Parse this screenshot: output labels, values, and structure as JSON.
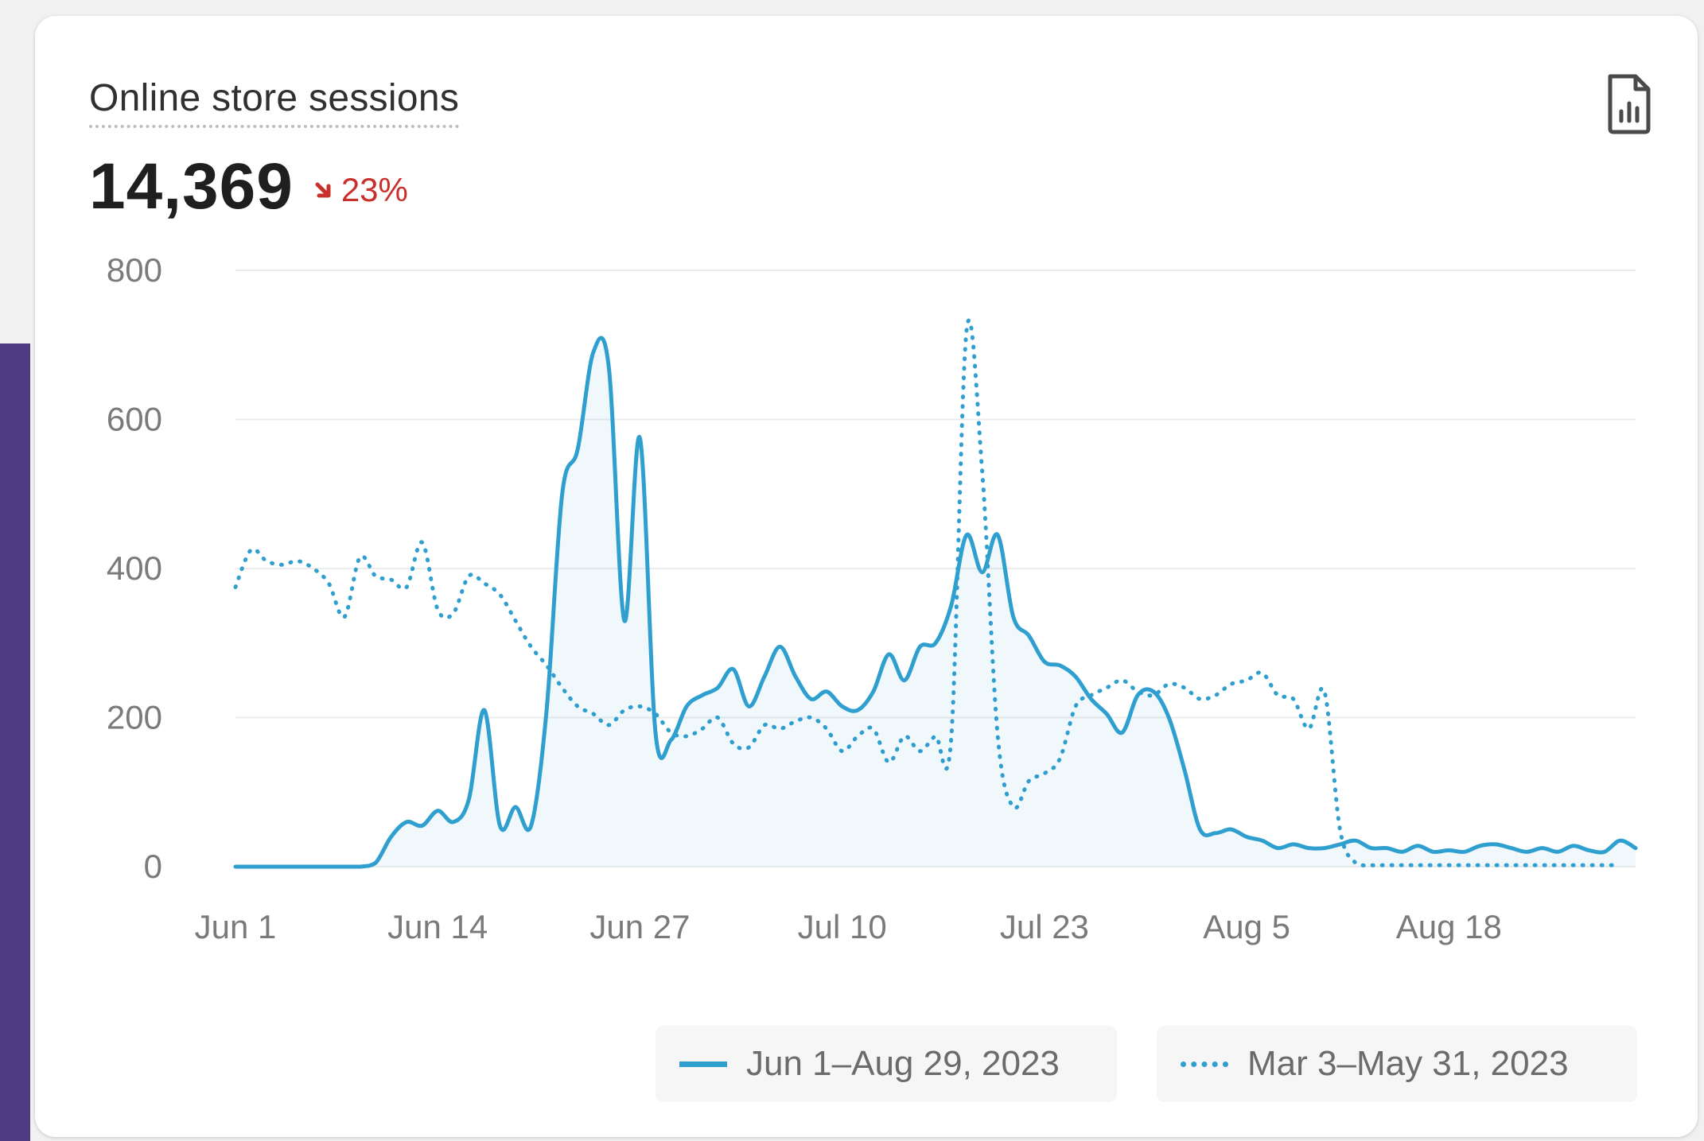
{
  "card": {
    "title": "Online store sessions",
    "value": "14,369",
    "change": "23%",
    "change_direction": "down",
    "change_color": "#c9302c",
    "export_icon": "report-chart-icon"
  },
  "colors": {
    "series": "#2f9fd0",
    "grid": "#ececec",
    "axis_text": "#7a7a7a",
    "side_accent": "#4f3a84"
  },
  "chart_data": {
    "type": "line",
    "ylim": [
      0,
      800
    ],
    "yticks": [
      0,
      200,
      400,
      600,
      800
    ],
    "xticks": [
      "Jun 1",
      "Jun 14",
      "Jun 27",
      "Jul 10",
      "Jul 23",
      "Aug 5",
      "Aug 18"
    ],
    "grid": true,
    "legend_position": "bottom-right",
    "series": [
      {
        "name": "Jun 1–Aug 29, 2023",
        "style": "solid",
        "fill": true,
        "points": [
          [
            0,
            0
          ],
          [
            1,
            0
          ],
          [
            2,
            0
          ],
          [
            3,
            0
          ],
          [
            4,
            0
          ],
          [
            5,
            0
          ],
          [
            6,
            0
          ],
          [
            7,
            0
          ],
          [
            8,
            0
          ],
          [
            9,
            5
          ],
          [
            10,
            40
          ],
          [
            11,
            60
          ],
          [
            12,
            55
          ],
          [
            13,
            75
          ],
          [
            14,
            60
          ],
          [
            15,
            90
          ],
          [
            16,
            210
          ],
          [
            17,
            55
          ],
          [
            18,
            80
          ],
          [
            19,
            55
          ],
          [
            20,
            210
          ],
          [
            21,
            500
          ],
          [
            22,
            560
          ],
          [
            23,
            690
          ],
          [
            24,
            670
          ],
          [
            25,
            330
          ],
          [
            26,
            575
          ],
          [
            27,
            180
          ],
          [
            28,
            170
          ],
          [
            29,
            215
          ],
          [
            30,
            230
          ],
          [
            31,
            240
          ],
          [
            32,
            265
          ],
          [
            33,
            215
          ],
          [
            34,
            255
          ],
          [
            35,
            295
          ],
          [
            36,
            255
          ],
          [
            37,
            225
          ],
          [
            38,
            235
          ],
          [
            39,
            215
          ],
          [
            40,
            210
          ],
          [
            41,
            235
          ],
          [
            42,
            285
          ],
          [
            43,
            250
          ],
          [
            44,
            295
          ],
          [
            45,
            300
          ],
          [
            46,
            350
          ],
          [
            47,
            445
          ],
          [
            48,
            395
          ],
          [
            49,
            445
          ],
          [
            50,
            335
          ],
          [
            51,
            310
          ],
          [
            52,
            275
          ],
          [
            53,
            270
          ],
          [
            54,
            255
          ],
          [
            55,
            225
          ],
          [
            56,
            205
          ],
          [
            57,
            180
          ],
          [
            58,
            230
          ],
          [
            59,
            235
          ],
          [
            60,
            200
          ],
          [
            61,
            130
          ],
          [
            62,
            50
          ],
          [
            63,
            45
          ],
          [
            64,
            50
          ],
          [
            65,
            40
          ],
          [
            66,
            35
          ],
          [
            67,
            25
          ],
          [
            68,
            30
          ],
          [
            69,
            25
          ],
          [
            70,
            25
          ],
          [
            71,
            30
          ],
          [
            72,
            35
          ],
          [
            73,
            25
          ],
          [
            74,
            25
          ],
          [
            75,
            20
          ],
          [
            76,
            28
          ],
          [
            77,
            20
          ],
          [
            78,
            22
          ],
          [
            79,
            20
          ],
          [
            80,
            28
          ],
          [
            81,
            30
          ],
          [
            82,
            25
          ],
          [
            83,
            20
          ],
          [
            84,
            25
          ],
          [
            85,
            20
          ],
          [
            86,
            28
          ],
          [
            87,
            22
          ],
          [
            88,
            20
          ],
          [
            89,
            35
          ],
          [
            90,
            25
          ]
        ]
      },
      {
        "name": "Mar 3–May 31, 2023",
        "style": "dotted",
        "fill": false,
        "points": [
          [
            0,
            375
          ],
          [
            1,
            425
          ],
          [
            2,
            410
          ],
          [
            3,
            405
          ],
          [
            4,
            410
          ],
          [
            5,
            400
          ],
          [
            6,
            380
          ],
          [
            7,
            335
          ],
          [
            8,
            415
          ],
          [
            9,
            390
          ],
          [
            10,
            385
          ],
          [
            11,
            375
          ],
          [
            12,
            435
          ],
          [
            13,
            345
          ],
          [
            14,
            340
          ],
          [
            15,
            390
          ],
          [
            16,
            380
          ],
          [
            17,
            365
          ],
          [
            18,
            330
          ],
          [
            19,
            295
          ],
          [
            20,
            270
          ],
          [
            21,
            240
          ],
          [
            22,
            215
          ],
          [
            23,
            205
          ],
          [
            24,
            190
          ],
          [
            25,
            210
          ],
          [
            26,
            215
          ],
          [
            27,
            205
          ],
          [
            28,
            180
          ],
          [
            29,
            175
          ],
          [
            30,
            185
          ],
          [
            31,
            200
          ],
          [
            32,
            165
          ],
          [
            33,
            160
          ],
          [
            34,
            190
          ],
          [
            35,
            185
          ],
          [
            36,
            195
          ],
          [
            37,
            200
          ],
          [
            38,
            185
          ],
          [
            39,
            155
          ],
          [
            40,
            175
          ],
          [
            41,
            185
          ],
          [
            42,
            140
          ],
          [
            43,
            175
          ],
          [
            44,
            155
          ],
          [
            45,
            175
          ],
          [
            46,
            170
          ],
          [
            47,
            720
          ],
          [
            48,
            530
          ],
          [
            49,
            175
          ],
          [
            50,
            80
          ],
          [
            51,
            115
          ],
          [
            52,
            125
          ],
          [
            53,
            145
          ],
          [
            54,
            215
          ],
          [
            55,
            230
          ],
          [
            56,
            240
          ],
          [
            57,
            250
          ],
          [
            58,
            235
          ],
          [
            59,
            230
          ],
          [
            60,
            245
          ],
          [
            61,
            240
          ],
          [
            62,
            225
          ],
          [
            63,
            230
          ],
          [
            64,
            245
          ],
          [
            65,
            250
          ],
          [
            66,
            260
          ],
          [
            67,
            230
          ],
          [
            68,
            225
          ],
          [
            69,
            185
          ],
          [
            70,
            235
          ],
          [
            71,
            50
          ],
          [
            72,
            5
          ],
          [
            73,
            2
          ],
          [
            74,
            2
          ],
          [
            75,
            2
          ],
          [
            76,
            2
          ],
          [
            77,
            2
          ],
          [
            78,
            2
          ],
          [
            79,
            2
          ],
          [
            80,
            2
          ],
          [
            81,
            2
          ],
          [
            82,
            2
          ],
          [
            83,
            2
          ],
          [
            84,
            2
          ],
          [
            85,
            2
          ],
          [
            86,
            2
          ],
          [
            87,
            2
          ],
          [
            88,
            2
          ],
          [
            89,
            2
          ]
        ]
      }
    ]
  }
}
